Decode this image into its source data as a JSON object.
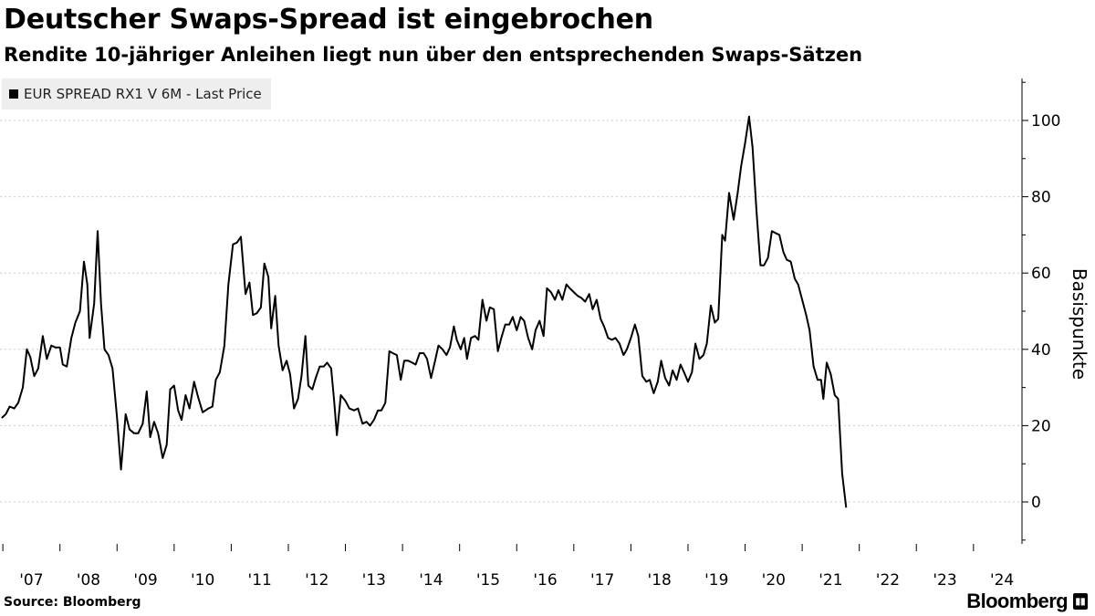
{
  "header": {
    "title": "Deutscher Swaps-Spread ist eingebrochen",
    "subtitle": "Rendite 10-jähriger Anleihen liegt nun über den entsprechenden Swaps-Sätzen"
  },
  "footer": {
    "source": "Source: Bloomberg",
    "brand": "Bloomberg"
  },
  "colors": {
    "line": "#000000",
    "grid": "#cccccc",
    "legend_bg": "#eeeeee"
  },
  "chart_data": {
    "type": "line",
    "title": "Deutscher Swaps-Spread ist eingebrochen",
    "subtitle": "Rendite 10-jähriger Anleihen liegt nun über den entsprechenden Swaps-Sätzen",
    "legend": [
      "EUR SPREAD RX1 V 6M - Last Price"
    ],
    "legend_position": "top-left",
    "xlabel": "",
    "ylabel": "Basispunkte",
    "ylim": [
      -11,
      111
    ],
    "yticks": [
      0,
      20,
      40,
      60,
      80,
      100
    ],
    "xlim": [
      2006.95,
      2024.85
    ],
    "xticks": [
      {
        "label": "'07",
        "x": 2007.5
      },
      {
        "label": "'08",
        "x": 2008.5
      },
      {
        "label": "'09",
        "x": 2009.5
      },
      {
        "label": "'10",
        "x": 2010.5
      },
      {
        "label": "'11",
        "x": 2011.5
      },
      {
        "label": "'12",
        "x": 2012.5
      },
      {
        "label": "'13",
        "x": 2013.5
      },
      {
        "label": "'14",
        "x": 2014.5
      },
      {
        "label": "'15",
        "x": 2015.5
      },
      {
        "label": "'16",
        "x": 2016.5
      },
      {
        "label": "'17",
        "x": 2017.5
      },
      {
        "label": "'18",
        "x": 2018.5
      },
      {
        "label": "'19",
        "x": 2019.5
      },
      {
        "label": "'20",
        "x": 2020.5
      },
      {
        "label": "'21",
        "x": 2021.5
      },
      {
        "label": "'22",
        "x": 2022.5
      },
      {
        "label": "'23",
        "x": 2023.5
      },
      {
        "label": "'24",
        "x": 2024.5
      }
    ],
    "grid": "horizontal-dotted",
    "y_axis_side": "right",
    "series": [
      {
        "name": "EUR SPREAD RX1 V 6M - Last Price",
        "points": [
          [
            2006.98,
            22
          ],
          [
            2007.05,
            23
          ],
          [
            2007.12,
            25
          ],
          [
            2007.2,
            24.5
          ],
          [
            2007.27,
            26
          ],
          [
            2007.35,
            30
          ],
          [
            2007.42,
            40
          ],
          [
            2007.48,
            38
          ],
          [
            2007.55,
            33
          ],
          [
            2007.62,
            35
          ],
          [
            2007.7,
            43.5
          ],
          [
            2007.77,
            37.5
          ],
          [
            2007.85,
            41
          ],
          [
            2007.92,
            40.5
          ],
          [
            2008.0,
            40.5
          ],
          [
            2008.05,
            36
          ],
          [
            2008.12,
            35.5
          ],
          [
            2008.2,
            43
          ],
          [
            2008.27,
            47
          ],
          [
            2008.35,
            50
          ],
          [
            2008.42,
            63
          ],
          [
            2008.48,
            57
          ],
          [
            2008.52,
            43
          ],
          [
            2008.6,
            52
          ],
          [
            2008.66,
            71
          ],
          [
            2008.72,
            52
          ],
          [
            2008.78,
            40
          ],
          [
            2008.85,
            38.5
          ],
          [
            2008.92,
            35
          ],
          [
            2009.0,
            22
          ],
          [
            2009.07,
            8.5
          ],
          [
            2009.15,
            23
          ],
          [
            2009.22,
            19
          ],
          [
            2009.3,
            18
          ],
          [
            2009.37,
            18
          ],
          [
            2009.45,
            20.5
          ],
          [
            2009.52,
            29
          ],
          [
            2009.58,
            17
          ],
          [
            2009.65,
            21
          ],
          [
            2009.72,
            18
          ],
          [
            2009.8,
            11.5
          ],
          [
            2009.87,
            15
          ],
          [
            2009.93,
            29.5
          ],
          [
            2010.0,
            30.5
          ],
          [
            2010.07,
            24
          ],
          [
            2010.13,
            21.5
          ],
          [
            2010.2,
            28
          ],
          [
            2010.27,
            24.5
          ],
          [
            2010.35,
            31.5
          ],
          [
            2010.42,
            27.5
          ],
          [
            2010.5,
            23.5
          ],
          [
            2010.6,
            24.5
          ],
          [
            2010.67,
            25
          ],
          [
            2010.73,
            32
          ],
          [
            2010.8,
            34
          ],
          [
            2010.88,
            41
          ],
          [
            2010.95,
            57
          ],
          [
            2011.03,
            67.5
          ],
          [
            2011.1,
            68
          ],
          [
            2011.17,
            69.5
          ],
          [
            2011.25,
            54.5
          ],
          [
            2011.32,
            57.5
          ],
          [
            2011.38,
            49
          ],
          [
            2011.45,
            49.5
          ],
          [
            2011.52,
            51
          ],
          [
            2011.58,
            62.5
          ],
          [
            2011.65,
            59
          ],
          [
            2011.7,
            45.5
          ],
          [
            2011.77,
            54
          ],
          [
            2011.83,
            41
          ],
          [
            2011.9,
            34.5
          ],
          [
            2011.97,
            37
          ],
          [
            2012.03,
            33.5
          ],
          [
            2012.1,
            24.5
          ],
          [
            2012.17,
            27
          ],
          [
            2012.23,
            33
          ],
          [
            2012.3,
            43.5
          ],
          [
            2012.35,
            30.5
          ],
          [
            2012.42,
            29.5
          ],
          [
            2012.48,
            32.5
          ],
          [
            2012.55,
            35.5
          ],
          [
            2012.62,
            35.5
          ],
          [
            2012.68,
            36.5
          ],
          [
            2012.75,
            35
          ],
          [
            2012.8,
            27
          ],
          [
            2012.85,
            17.5
          ],
          [
            2012.92,
            28
          ],
          [
            2013.0,
            26.5
          ],
          [
            2013.07,
            24.5
          ],
          [
            2013.15,
            24
          ],
          [
            2013.22,
            24.5
          ],
          [
            2013.3,
            20.5
          ],
          [
            2013.37,
            21
          ],
          [
            2013.43,
            20
          ],
          [
            2013.5,
            21.5
          ],
          [
            2013.57,
            24
          ],
          [
            2013.63,
            24
          ],
          [
            2013.7,
            26
          ],
          [
            2013.77,
            39.5
          ],
          [
            2013.83,
            39
          ],
          [
            2013.9,
            38.5
          ],
          [
            2013.97,
            32
          ],
          [
            2014.03,
            37
          ],
          [
            2014.1,
            37
          ],
          [
            2014.17,
            36.5
          ],
          [
            2014.23,
            36
          ],
          [
            2014.3,
            39
          ],
          [
            2014.37,
            39
          ],
          [
            2014.43,
            37.5
          ],
          [
            2014.5,
            32.5
          ],
          [
            2014.57,
            37
          ],
          [
            2014.63,
            41
          ],
          [
            2014.7,
            40
          ],
          [
            2014.77,
            38.5
          ],
          [
            2014.83,
            40.5
          ],
          [
            2014.9,
            46
          ],
          [
            2014.95,
            42.5
          ],
          [
            2015.02,
            40
          ],
          [
            2015.08,
            43
          ],
          [
            2015.13,
            37.5
          ],
          [
            2015.2,
            43
          ],
          [
            2015.27,
            43.5
          ],
          [
            2015.33,
            42.5
          ],
          [
            2015.4,
            53
          ],
          [
            2015.47,
            47.5
          ],
          [
            2015.53,
            51
          ],
          [
            2015.6,
            50.5
          ],
          [
            2015.67,
            39.5
          ],
          [
            2015.73,
            43
          ],
          [
            2015.8,
            46.5
          ],
          [
            2015.87,
            46.5
          ],
          [
            2015.93,
            48.5
          ],
          [
            2016.0,
            45
          ],
          [
            2016.07,
            48.5
          ],
          [
            2016.13,
            47.5
          ],
          [
            2016.2,
            43
          ],
          [
            2016.27,
            40
          ],
          [
            2016.33,
            45
          ],
          [
            2016.4,
            47.5
          ],
          [
            2016.47,
            43.5
          ],
          [
            2016.53,
            56
          ],
          [
            2016.6,
            55
          ],
          [
            2016.67,
            53
          ],
          [
            2016.73,
            55.5
          ],
          [
            2016.8,
            53
          ],
          [
            2016.87,
            57
          ],
          [
            2016.93,
            56
          ],
          [
            2017.0,
            55
          ],
          [
            2017.07,
            54
          ],
          [
            2017.13,
            53.5
          ],
          [
            2017.2,
            52.5
          ],
          [
            2017.27,
            54.5
          ],
          [
            2017.33,
            50.5
          ],
          [
            2017.4,
            53
          ],
          [
            2017.47,
            48
          ],
          [
            2017.53,
            46
          ],
          [
            2017.6,
            43
          ],
          [
            2017.67,
            42.5
          ],
          [
            2017.73,
            43
          ],
          [
            2017.8,
            41.5
          ],
          [
            2017.87,
            38.5
          ],
          [
            2017.93,
            40
          ],
          [
            2018.0,
            43
          ],
          [
            2018.07,
            46.5
          ],
          [
            2018.13,
            43.5
          ],
          [
            2018.2,
            33
          ],
          [
            2018.27,
            31.5
          ],
          [
            2018.33,
            32
          ],
          [
            2018.4,
            28.5
          ],
          [
            2018.47,
            31.5
          ],
          [
            2018.53,
            37
          ],
          [
            2018.6,
            32.5
          ],
          [
            2018.67,
            30.5
          ],
          [
            2018.73,
            34.5
          ],
          [
            2018.8,
            32
          ],
          [
            2018.87,
            36
          ],
          [
            2018.93,
            34
          ],
          [
            2019.0,
            31.5
          ],
          [
            2019.07,
            34
          ],
          [
            2019.13,
            41.5
          ],
          [
            2019.2,
            37.5
          ],
          [
            2019.27,
            38.5
          ],
          [
            2019.33,
            41.5
          ],
          [
            2019.4,
            51.5
          ],
          [
            2019.47,
            47
          ],
          [
            2019.53,
            48
          ],
          [
            2019.6,
            70
          ],
          [
            2019.65,
            68.5
          ],
          [
            2019.72,
            81
          ],
          [
            2019.8,
            74
          ],
          [
            2019.87,
            81
          ],
          [
            2019.93,
            88
          ],
          [
            2020.0,
            94
          ],
          [
            2020.07,
            101
          ],
          [
            2020.13,
            93
          ],
          [
            2020.2,
            76
          ],
          [
            2020.27,
            62
          ],
          [
            2020.33,
            62
          ],
          [
            2020.4,
            64
          ],
          [
            2020.47,
            71
          ],
          [
            2020.53,
            70.5
          ],
          [
            2020.6,
            70
          ],
          [
            2020.67,
            65.5
          ],
          [
            2020.73,
            63.5
          ],
          [
            2020.8,
            63
          ],
          [
            2020.87,
            58.5
          ],
          [
            2020.93,
            57
          ],
          [
            2021.0,
            53
          ],
          [
            2021.07,
            49
          ],
          [
            2021.13,
            45
          ],
          [
            2021.2,
            35.5
          ],
          [
            2021.27,
            32
          ],
          [
            2021.33,
            32
          ],
          [
            2021.37,
            27
          ],
          [
            2021.43,
            36.5
          ],
          [
            2021.5,
            33.5
          ],
          [
            2021.57,
            28
          ],
          [
            2021.63,
            27
          ],
          [
            2021.7,
            7.5
          ],
          [
            2021.77,
            -1.5
          ]
        ]
      }
    ]
  }
}
